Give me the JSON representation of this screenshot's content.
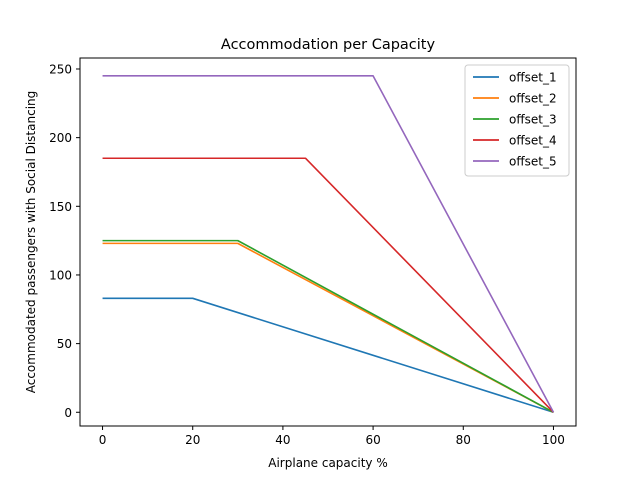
{
  "chart_data": {
    "type": "line",
    "title": "Accommodation per Capacity",
    "xlabel": "Airplane capacity %",
    "ylabel": "Accommodated passengers with Social Distancing",
    "xlim": [
      -5,
      105
    ],
    "ylim": [
      -10,
      258
    ],
    "xticks": [
      0,
      20,
      40,
      60,
      80,
      100
    ],
    "yticks": [
      0,
      50,
      100,
      150,
      200,
      250
    ],
    "grid": false,
    "legend_position": "top-right",
    "series": [
      {
        "name": "offset_1",
        "color": "#1f77b4",
        "x": [
          0,
          20,
          100
        ],
        "y": [
          83,
          83,
          0
        ]
      },
      {
        "name": "offset_2",
        "color": "#ff7f0e",
        "x": [
          0,
          30,
          100
        ],
        "y": [
          123,
          123,
          0
        ]
      },
      {
        "name": "offset_3",
        "color": "#2ca02c",
        "x": [
          0,
          30,
          100
        ],
        "y": [
          125,
          125,
          0
        ]
      },
      {
        "name": "offset_4",
        "color": "#d62728",
        "x": [
          0,
          45,
          100
        ],
        "y": [
          185,
          185,
          0
        ]
      },
      {
        "name": "offset_5",
        "color": "#9467bd",
        "x": [
          0,
          60,
          100
        ],
        "y": [
          245,
          245,
          0
        ]
      }
    ]
  }
}
